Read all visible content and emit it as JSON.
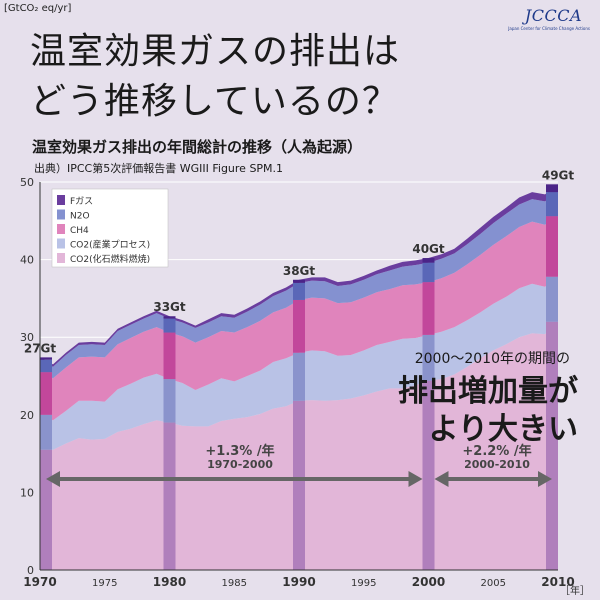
{
  "header": {
    "unit": "[GtCO₂ eq/yr]",
    "logo_text": "JCCCA",
    "logo_sub": "Japan Center for Climate Change Actions",
    "headline_line1": "温室効果ガスの排出は",
    "headline_line2": "どう推移しているの？"
  },
  "chart_data": {
    "type": "area",
    "title": "温室効果ガス排出の年間総計の推移（人為起源）",
    "source": "出典）IPCC第5次評価報告書 WGIII Figure SPM.1",
    "x": [
      1970,
      1971,
      1972,
      1973,
      1974,
      1975,
      1976,
      1977,
      1978,
      1979,
      1980,
      1981,
      1982,
      1983,
      1984,
      1985,
      1986,
      1987,
      1988,
      1989,
      1990,
      1991,
      1992,
      1993,
      1994,
      1995,
      1996,
      1997,
      1998,
      1999,
      2000,
      2001,
      2002,
      2003,
      2004,
      2005,
      2006,
      2007,
      2008,
      2009,
      2010
    ],
    "xlim": [
      1970,
      2010
    ],
    "ylim": [
      0,
      50
    ],
    "yticks": [
      0,
      10,
      20,
      30,
      40,
      50
    ],
    "xticks": [
      1970,
      1975,
      1980,
      1985,
      1990,
      1995,
      2000,
      2005,
      2010
    ],
    "xunit": "［年］",
    "series": [
      {
        "name": "CO2(化石燃料燃焼)",
        "color": "#e2b6d8",
        "values": [
          15.5,
          15.5,
          16.3,
          17.0,
          16.8,
          16.9,
          17.8,
          18.2,
          18.8,
          19.3,
          19.0,
          18.6,
          18.5,
          18.5,
          19.2,
          19.5,
          19.7,
          20.1,
          20.8,
          21.1,
          21.8,
          21.9,
          21.8,
          21.9,
          22.1,
          22.5,
          23.0,
          23.4,
          23.4,
          23.8,
          24.4,
          24.6,
          25.2,
          26.2,
          27.3,
          28.3,
          29.1,
          30.0,
          30.5,
          30.4,
          32.0
        ]
      },
      {
        "name": "CO2(産業プロセス)",
        "color": "#b9c2e6",
        "values": [
          4.5,
          3.8,
          4.2,
          4.8,
          5.0,
          4.8,
          5.5,
          5.8,
          6.0,
          6.0,
          5.6,
          5.5,
          4.7,
          5.4,
          5.5,
          4.8,
          5.3,
          5.6,
          6.0,
          6.2,
          6.2,
          6.4,
          6.4,
          5.7,
          5.6,
          5.8,
          6.0,
          6.0,
          6.4,
          6.1,
          5.9,
          6.1,
          6.1,
          6.0,
          5.9,
          6.0,
          6.1,
          6.3,
          6.4,
          6.1,
          5.8
        ]
      },
      {
        "name": "CH4",
        "color": "#e084bc",
        "values": [
          5.5,
          5.4,
          5.6,
          5.6,
          5.7,
          5.7,
          5.8,
          5.9,
          5.9,
          6.0,
          6.0,
          6.0,
          6.1,
          6.1,
          6.1,
          6.3,
          6.3,
          6.4,
          6.4,
          6.5,
          6.8,
          6.8,
          6.8,
          6.8,
          6.8,
          6.8,
          6.8,
          6.8,
          6.9,
          6.9,
          6.8,
          6.9,
          7.0,
          7.2,
          7.4,
          7.6,
          7.8,
          7.9,
          8.0,
          8.0,
          7.8
        ]
      },
      {
        "name": "N2O",
        "color": "#8491d0",
        "values": [
          1.6,
          1.5,
          1.6,
          1.6,
          1.6,
          1.6,
          1.7,
          1.7,
          1.7,
          1.8,
          1.8,
          1.8,
          1.9,
          1.9,
          1.9,
          1.9,
          2.0,
          2.1,
          2.1,
          2.2,
          2.2,
          2.2,
          2.2,
          2.2,
          2.3,
          2.3,
          2.3,
          2.4,
          2.4,
          2.5,
          2.5,
          2.5,
          2.5,
          2.6,
          2.7,
          2.8,
          2.9,
          2.9,
          2.9,
          3.0,
          3.1
        ]
      },
      {
        "name": "Fガス",
        "color": "#6a3d9e",
        "values": [
          0.3,
          0.3,
          0.3,
          0.3,
          0.3,
          0.3,
          0.3,
          0.3,
          0.3,
          0.3,
          0.3,
          0.3,
          0.3,
          0.4,
          0.4,
          0.4,
          0.4,
          0.4,
          0.4,
          0.4,
          0.4,
          0.4,
          0.5,
          0.5,
          0.5,
          0.5,
          0.5,
          0.6,
          0.6,
          0.6,
          0.6,
          0.6,
          0.6,
          0.7,
          0.8,
          0.8,
          0.8,
          0.9,
          0.9,
          0.9,
          1.0
        ]
      }
    ],
    "legend_placement": "top-left",
    "highlight_bars": [
      {
        "year": 1970,
        "label": "27Gt"
      },
      {
        "year": 1980,
        "label": "33Gt"
      },
      {
        "year": 1990,
        "label": "38Gt"
      },
      {
        "year": 2000,
        "label": "40Gt"
      },
      {
        "year": 2010,
        "label": "49Gt"
      }
    ]
  },
  "annotations": {
    "callout_line1": "2000～2010年の期間の",
    "callout_line2": "排出増加量が",
    "callout_line3": "より大きい",
    "growth1_rate": "+1.3% /年",
    "growth1_period": "1970-2000",
    "growth2_rate": "+2.2% /年",
    "growth2_period": "2000-2010"
  }
}
